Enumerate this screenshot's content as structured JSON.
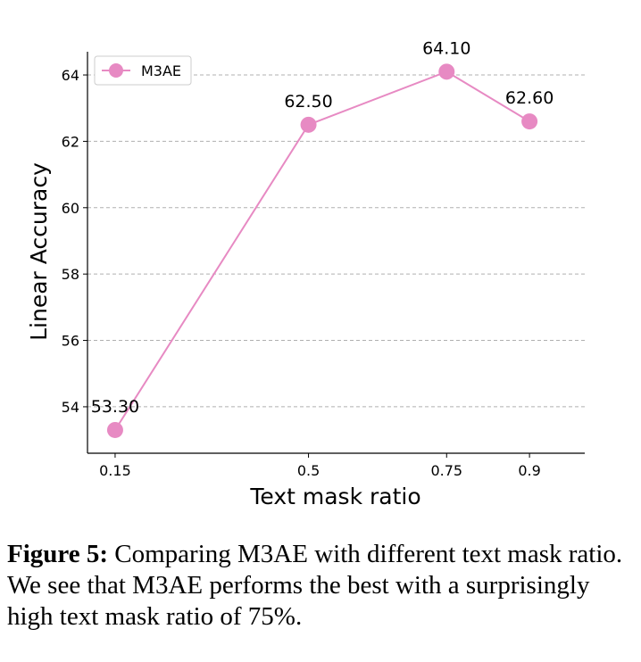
{
  "chart_data": {
    "type": "line",
    "title": "",
    "xlabel": "Text mask ratio",
    "ylabel": "Linear Accuracy",
    "x": [
      0.15,
      0.5,
      0.75,
      0.9
    ],
    "x_tick_labels": [
      "0.15",
      "0.5",
      "0.75",
      "0.9"
    ],
    "y_ticks": [
      54,
      56,
      58,
      60,
      62,
      64
    ],
    "ylim": [
      52.6,
      64.7
    ],
    "xlim": [
      0.1,
      1.0
    ],
    "grid": "y-dashed",
    "legend_position": "top-left",
    "series": [
      {
        "name": "M3AE",
        "color": "#e78ac3",
        "values": [
          53.3,
          62.5,
          64.1,
          62.6
        ],
        "data_labels": [
          "53.30",
          "62.50",
          "64.10",
          "62.60"
        ]
      }
    ]
  },
  "caption": {
    "label": "Figure 5:",
    "text": " Comparing M3AE with different text mask ratio. We see that M3AE performs the best with a surprisingly high text mask ratio of 75%."
  }
}
